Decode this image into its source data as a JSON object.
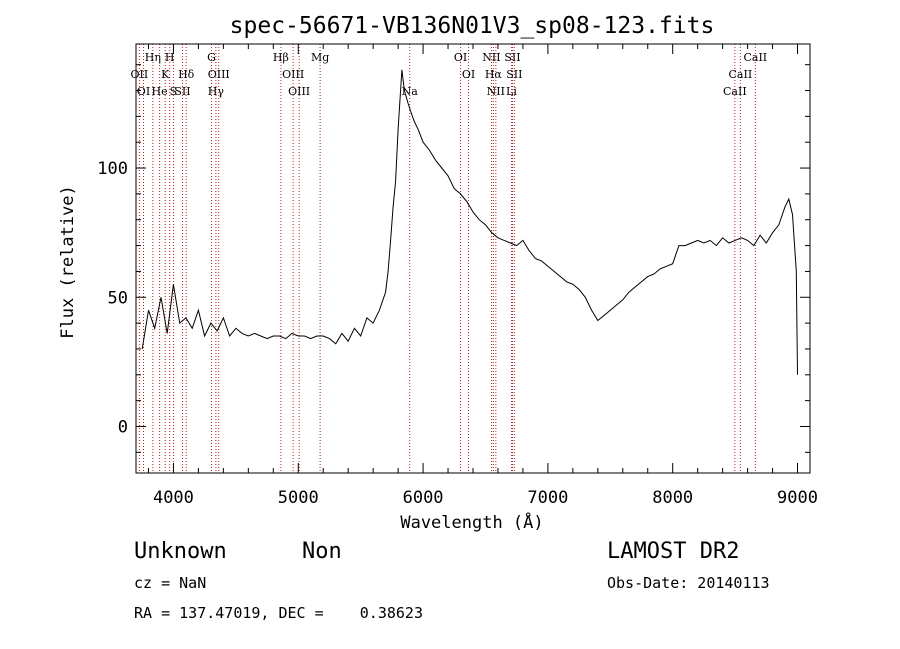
{
  "chart_data": {
    "type": "line",
    "title": "spec-56671-VB136N01V3_sp08-123.fits",
    "xlabel": "Wavelength (Å)",
    "ylabel": "Flux (relative)",
    "xlim": [
      3700,
      9100
    ],
    "ylim": [
      -18,
      148
    ],
    "xticks": [
      4000,
      5000,
      6000,
      7000,
      8000,
      9000
    ],
    "xtick_labels": [
      "4000",
      "5000",
      "6000",
      "7000",
      "8000",
      "9000"
    ],
    "yticks": [
      0,
      50,
      100
    ],
    "ytick_labels": [
      "0",
      "50",
      "100"
    ],
    "grid": false,
    "series": [
      {
        "x": [
          3750,
          3800,
          3850,
          3900,
          3950,
          4000,
          4050,
          4100,
          4150,
          4200,
          4250,
          4300,
          4350,
          4400,
          4450,
          4500,
          4550,
          4600,
          4650,
          4700,
          4750,
          4800,
          4850,
          4900,
          4950,
          5000,
          5050,
          5100,
          5150,
          5200,
          5250,
          5300,
          5350,
          5400,
          5450,
          5500,
          5550,
          5600,
          5650,
          5700,
          5720,
          5740,
          5760,
          5780,
          5800,
          5830,
          5850,
          5880,
          5900,
          5930,
          5960,
          6000,
          6050,
          6100,
          6150,
          6200,
          6250,
          6300,
          6350,
          6400,
          6450,
          6500,
          6550,
          6600,
          6650,
          6700,
          6750,
          6800,
          6850,
          6900,
          6950,
          7000,
          7050,
          7100,
          7150,
          7200,
          7250,
          7300,
          7350,
          7400,
          7450,
          7500,
          7550,
          7600,
          7650,
          7700,
          7750,
          7800,
          7850,
          7900,
          7950,
          8000,
          8050,
          8100,
          8150,
          8200,
          8250,
          8300,
          8350,
          8400,
          8450,
          8500,
          8550,
          8600,
          8650,
          8700,
          8750,
          8800,
          8850,
          8900,
          8930,
          8960,
          8990,
          9000
        ],
        "y": [
          30,
          45,
          38,
          50,
          36,
          55,
          40,
          42,
          38,
          45,
          35,
          40,
          37,
          42,
          35,
          38,
          36,
          35,
          36,
          35,
          34,
          35,
          35,
          34,
          36,
          35,
          35,
          34,
          35,
          35,
          34,
          32,
          36,
          33,
          38,
          35,
          42,
          40,
          45,
          52,
          60,
          72,
          85,
          95,
          115,
          138,
          130,
          125,
          122,
          118,
          115,
          110,
          107,
          103,
          100,
          97,
          92,
          90,
          87,
          83,
          80,
          78,
          75,
          73,
          72,
          71,
          70,
          72,
          68,
          65,
          64,
          62,
          60,
          58,
          56,
          55,
          53,
          50,
          45,
          41,
          43,
          45,
          47,
          49,
          52,
          54,
          56,
          58,
          59,
          61,
          62,
          63,
          70,
          70,
          71,
          72,
          71,
          72,
          70,
          73,
          71,
          72,
          73,
          72,
          70,
          74,
          71,
          75,
          78,
          85,
          88,
          82,
          60,
          20
        ]
      }
    ],
    "lines": [
      {
        "label": "OII",
        "x": 3727
      },
      {
        "label": "Hη",
        "x": 3835
      },
      {
        "label": "OI",
        "x": 3760
      },
      {
        "label": "He",
        "x": 3889
      },
      {
        "label": "H",
        "x": 3970
      },
      {
        "label": "K",
        "x": 3934
      },
      {
        "label": "S",
        "x": 4000
      },
      {
        "label": "Hδ",
        "x": 4102
      },
      {
        "label": "SII",
        "x": 4072
      },
      {
        "label": "G",
        "x": 4305
      },
      {
        "label": "OIII",
        "x": 4363
      },
      {
        "label": "Hγ",
        "x": 4340
      },
      {
        "label": "Hβ",
        "x": 4861
      },
      {
        "label": "OIII",
        "x": 4959
      },
      {
        "label": "OIII",
        "x": 5007
      },
      {
        "label": "Mg",
        "x": 5175
      },
      {
        "label": "Na",
        "x": 5893
      },
      {
        "label": "OI",
        "x": 6300
      },
      {
        "label": "OI",
        "x": 6364
      },
      {
        "label": "NII",
        "x": 6548
      },
      {
        "label": "Hα",
        "x": 6563
      },
      {
        "label": "NII",
        "x": 6583
      },
      {
        "label": "Li",
        "x": 6708
      },
      {
        "label": "SII",
        "x": 6716
      },
      {
        "label": "SII",
        "x": 6731
      },
      {
        "label": "CaII",
        "x": 8498
      },
      {
        "label": "CaII",
        "x": 8542
      },
      {
        "label": "CaII",
        "x": 8662
      }
    ]
  },
  "info": {
    "class_text": "Unknown",
    "subclass_text": "Non",
    "cz_text": "cz = NaN",
    "radec_text": "RA = 137.47019, DEC =    0.38623",
    "survey_text": "LAMOST DR2",
    "obsdate_text": "Obs-Date: 20140113"
  },
  "colors": {
    "spectrum": "#000000",
    "line_markers": "#b22222",
    "axes": "#000000",
    "background": "#ffffff"
  }
}
